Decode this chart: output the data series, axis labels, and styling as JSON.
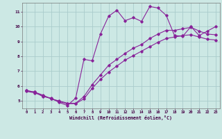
{
  "xlabel": "Windchill (Refroidissement éolien,°C)",
  "background_color": "#cce8e4",
  "grid_color": "#aacccc",
  "line_color": "#882299",
  "x_ticks": [
    0,
    1,
    2,
    3,
    4,
    5,
    6,
    7,
    8,
    9,
    10,
    11,
    12,
    13,
    14,
    15,
    16,
    17,
    18,
    19,
    20,
    21,
    22,
    23
  ],
  "y_ticks": [
    5,
    6,
    7,
    8,
    9,
    10,
    11
  ],
  "ylim": [
    4.5,
    11.6
  ],
  "xlim": [
    -0.5,
    23.5
  ],
  "line1_y": [
    5.7,
    5.6,
    5.3,
    5.2,
    4.9,
    4.7,
    5.2,
    7.8,
    7.7,
    9.5,
    10.7,
    11.1,
    10.4,
    10.6,
    10.35,
    11.35,
    11.25,
    10.75,
    9.4,
    9.35,
    10.0,
    9.4,
    9.7,
    10.0
  ],
  "line2_y": [
    5.7,
    5.6,
    5.4,
    5.15,
    5.0,
    4.85,
    4.85,
    5.3,
    6.1,
    6.75,
    7.4,
    7.8,
    8.2,
    8.55,
    8.8,
    9.2,
    9.5,
    9.75,
    9.75,
    9.85,
    9.95,
    9.7,
    9.5,
    9.45
  ],
  "line3_y": [
    5.65,
    5.55,
    5.35,
    5.15,
    4.95,
    4.82,
    4.82,
    5.15,
    5.85,
    6.45,
    6.95,
    7.35,
    7.75,
    8.05,
    8.35,
    8.65,
    8.95,
    9.2,
    9.3,
    9.4,
    9.45,
    9.3,
    9.15,
    9.1
  ]
}
